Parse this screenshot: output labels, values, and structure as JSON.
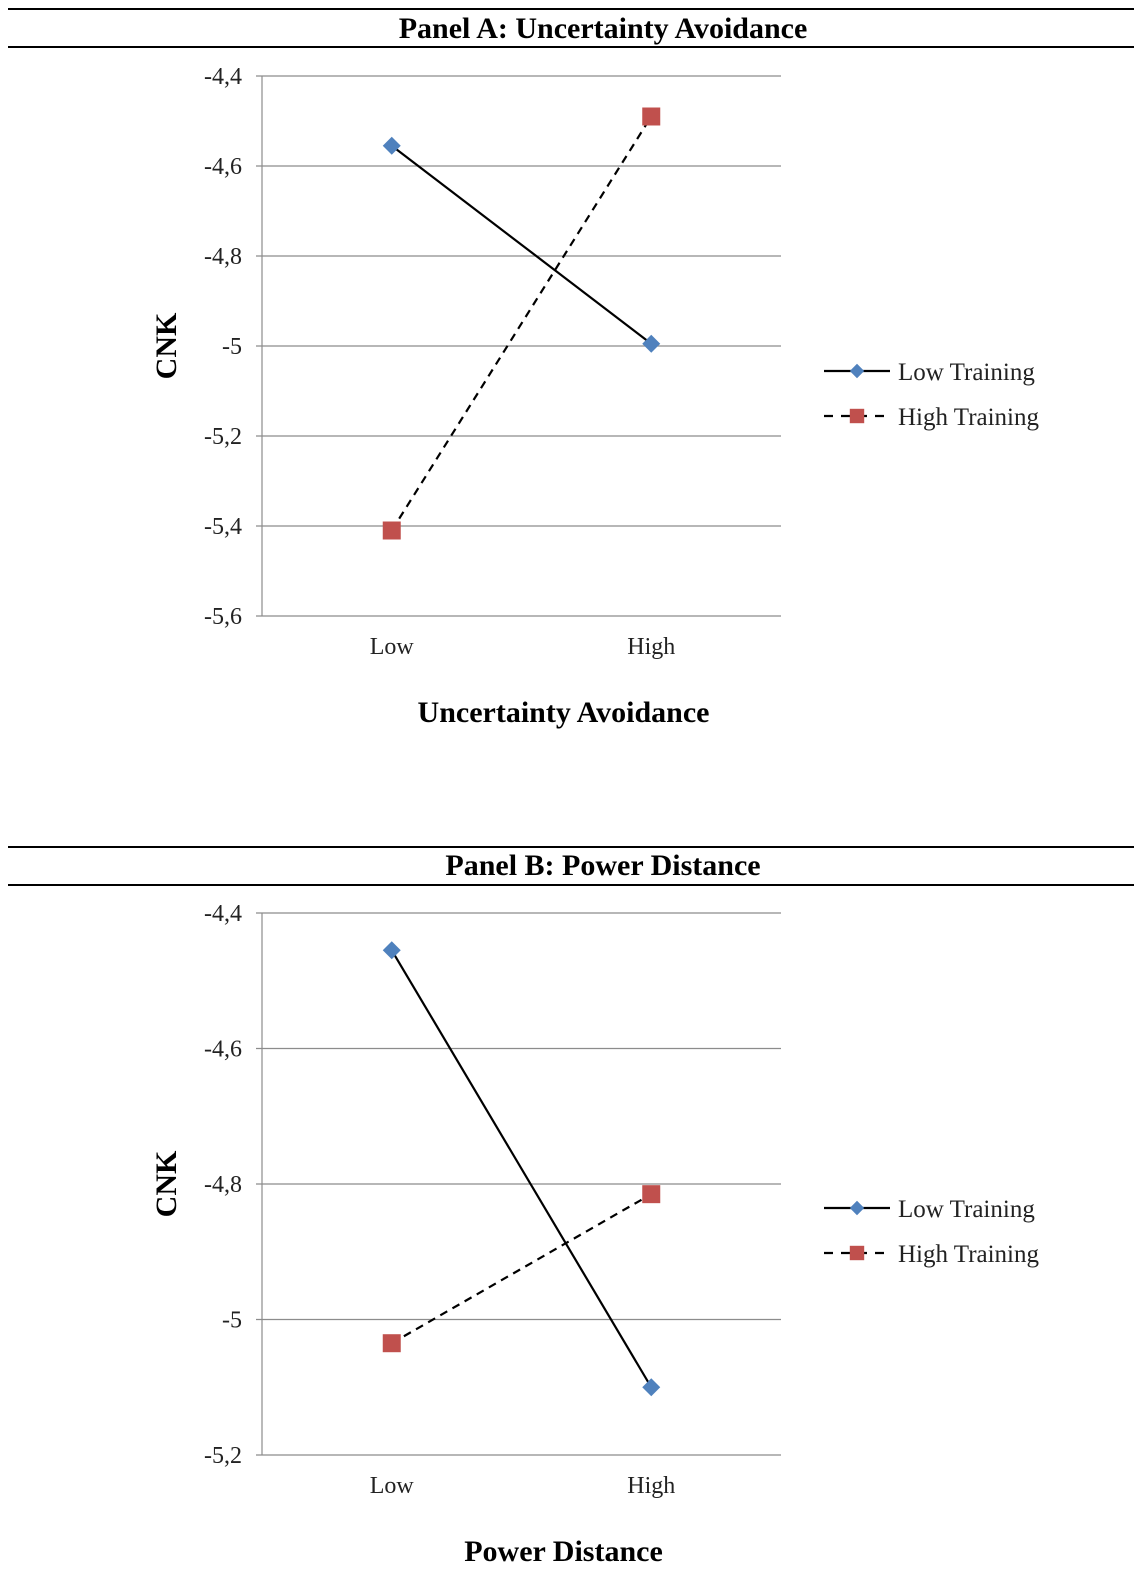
{
  "chart_data": [
    {
      "type": "line",
      "title": "Panel A: Uncertainty Avoidance",
      "xlabel": "Uncertainty Avoidance",
      "ylabel": "CNK",
      "categories": [
        "Low",
        "High"
      ],
      "ylim": [
        -5.6,
        -4.4
      ],
      "yticks": [
        "-4,4",
        "-4,6",
        "-4,8",
        "-5",
        "-5,2",
        "-5,4",
        "-5,6"
      ],
      "ytick_values": [
        -4.4,
        -4.6,
        -4.8,
        -5.0,
        -5.2,
        -5.4,
        -5.6
      ],
      "grid": true,
      "legend_position": "right",
      "series": [
        {
          "name": "Low Training",
          "values": [
            -4.555,
            -4.995
          ],
          "color": "#4f81bd",
          "marker": "diamond",
          "line": "solid"
        },
        {
          "name": "High Training",
          "values": [
            -5.41,
            -4.49
          ],
          "color": "#c0504d",
          "marker": "square",
          "line": "dashed"
        }
      ]
    },
    {
      "type": "line",
      "title": "Panel B: Power Distance",
      "xlabel": "Power Distance",
      "ylabel": "CNK",
      "categories": [
        "Low",
        "High"
      ],
      "ylim": [
        -5.2,
        -4.4
      ],
      "yticks": [
        "-4,4",
        "-4,6",
        "-4,8",
        "-5",
        "-5,2"
      ],
      "ytick_values": [
        -4.4,
        -4.6,
        -4.8,
        -5.0,
        -5.2
      ],
      "grid": true,
      "legend_position": "right",
      "series": [
        {
          "name": "Low Training",
          "values": [
            -4.455,
            -5.1
          ],
          "color": "#4f81bd",
          "marker": "diamond",
          "line": "solid"
        },
        {
          "name": "High Training",
          "values": [
            -5.035,
            -4.815
          ],
          "color": "#c0504d",
          "marker": "square",
          "line": "dashed"
        }
      ]
    }
  ]
}
